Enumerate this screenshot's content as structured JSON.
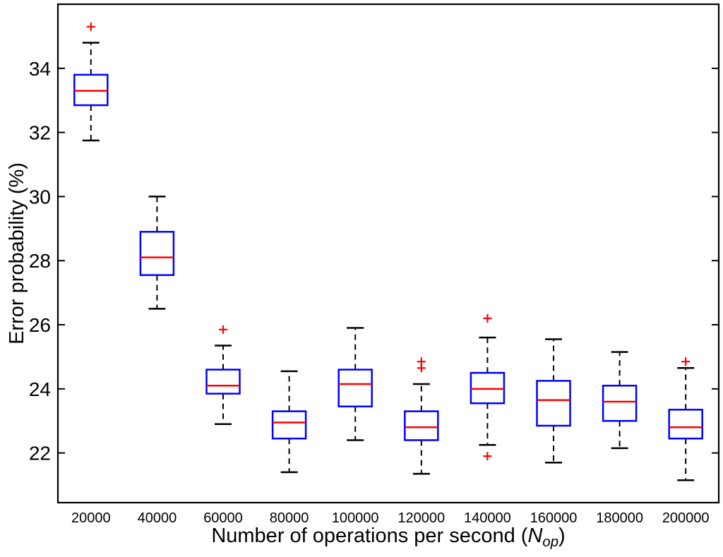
{
  "chart_data": {
    "type": "boxplot",
    "title": "",
    "ylabel": "Error probability (%)",
    "xlabel": {
      "prefix": "Number of operations per second (",
      "var": "N",
      "sub": "op",
      "suffix": ")"
    },
    "x_tick_labels": [
      "20000",
      "40000",
      "60000",
      "80000",
      "100000",
      "120000",
      "140000",
      "160000",
      "180000",
      "200000"
    ],
    "y_ticks": [
      22,
      24,
      26,
      28,
      30,
      32,
      34
    ],
    "y_tick_labels": [
      "22",
      "24",
      "26",
      "28",
      "30",
      "32",
      "34"
    ],
    "ylim": [
      20.45,
      36.0
    ],
    "grid": false,
    "legend": null,
    "colors": {
      "box": "#0000ff",
      "median": "#ff0000",
      "outlier": "#ff0000",
      "whisker": "#000000",
      "axis": "#000000",
      "background": "#ffffff"
    },
    "boxes": [
      {
        "category": "20000",
        "whisker_low": 31.75,
        "q1": 32.85,
        "median": 33.3,
        "q3": 33.8,
        "whisker_high": 34.8,
        "outliers": [
          35.3
        ]
      },
      {
        "category": "40000",
        "whisker_low": 26.5,
        "q1": 27.55,
        "median": 28.1,
        "q3": 28.9,
        "whisker_high": 30.0,
        "outliers": []
      },
      {
        "category": "60000",
        "whisker_low": 22.9,
        "q1": 23.85,
        "median": 24.1,
        "q3": 24.6,
        "whisker_high": 25.35,
        "outliers": [
          25.85
        ]
      },
      {
        "category": "80000",
        "whisker_low": 21.4,
        "q1": 22.45,
        "median": 22.95,
        "q3": 23.3,
        "whisker_high": 24.55,
        "outliers": []
      },
      {
        "category": "100000",
        "whisker_low": 22.4,
        "q1": 23.45,
        "median": 24.15,
        "q3": 24.6,
        "whisker_high": 25.9,
        "outliers": []
      },
      {
        "category": "120000",
        "whisker_low": 21.35,
        "q1": 22.4,
        "median": 22.8,
        "q3": 23.3,
        "whisker_high": 24.15,
        "outliers": [
          24.65,
          24.85
        ]
      },
      {
        "category": "140000",
        "whisker_low": 22.25,
        "q1": 23.55,
        "median": 24.0,
        "q3": 24.5,
        "whisker_high": 25.6,
        "outliers": [
          26.2,
          21.9
        ]
      },
      {
        "category": "160000",
        "whisker_low": 21.7,
        "q1": 22.85,
        "median": 23.65,
        "q3": 24.25,
        "whisker_high": 25.55,
        "outliers": []
      },
      {
        "category": "180000",
        "whisker_low": 22.15,
        "q1": 23.0,
        "median": 23.6,
        "q3": 24.1,
        "whisker_high": 25.15,
        "outliers": []
      },
      {
        "category": "200000",
        "whisker_low": 21.15,
        "q1": 22.45,
        "median": 22.8,
        "q3": 23.35,
        "whisker_high": 24.65,
        "outliers": [
          24.85
        ]
      }
    ]
  }
}
